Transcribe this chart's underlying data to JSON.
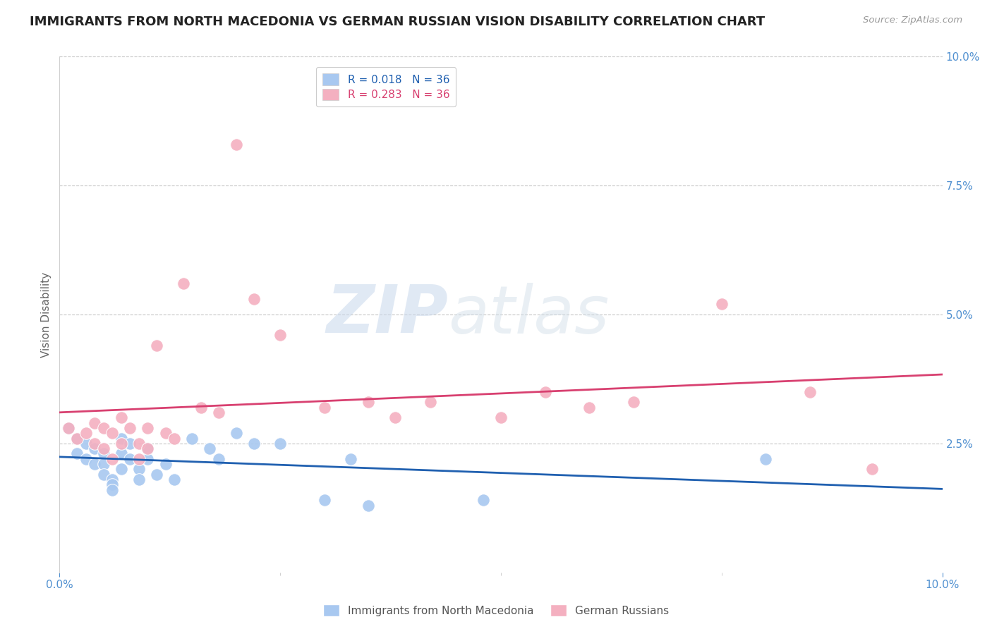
{
  "title": "IMMIGRANTS FROM NORTH MACEDONIA VS GERMAN RUSSIAN VISION DISABILITY CORRELATION CHART",
  "source": "Source: ZipAtlas.com",
  "ylabel": "Vision Disability",
  "series1_name": "Immigrants from North Macedonia",
  "series2_name": "German Russians",
  "series1_color": "#a8c8f0",
  "series2_color": "#f4b0c0",
  "line1_color": "#2060b0",
  "line2_color": "#d84070",
  "r1": 0.018,
  "r2": 0.283,
  "n1": 36,
  "n2": 36,
  "xlim": [
    0.0,
    0.1
  ],
  "ylim": [
    0.0,
    0.1
  ],
  "y_ticks_right": [
    0.025,
    0.05,
    0.075,
    0.1
  ],
  "blue_x": [
    0.001,
    0.002,
    0.002,
    0.003,
    0.003,
    0.004,
    0.004,
    0.005,
    0.005,
    0.005,
    0.006,
    0.006,
    0.006,
    0.007,
    0.007,
    0.007,
    0.008,
    0.008,
    0.009,
    0.009,
    0.01,
    0.01,
    0.011,
    0.012,
    0.013,
    0.015,
    0.017,
    0.018,
    0.02,
    0.022,
    0.025,
    0.03,
    0.033,
    0.035,
    0.048,
    0.08
  ],
  "blue_y": [
    0.028,
    0.026,
    0.023,
    0.025,
    0.022,
    0.024,
    0.021,
    0.023,
    0.021,
    0.019,
    0.018,
    0.017,
    0.016,
    0.026,
    0.023,
    0.02,
    0.025,
    0.022,
    0.02,
    0.018,
    0.024,
    0.022,
    0.019,
    0.021,
    0.018,
    0.026,
    0.024,
    0.022,
    0.027,
    0.025,
    0.025,
    0.014,
    0.022,
    0.013,
    0.014,
    0.022
  ],
  "pink_x": [
    0.001,
    0.002,
    0.003,
    0.004,
    0.004,
    0.005,
    0.005,
    0.006,
    0.006,
    0.007,
    0.007,
    0.008,
    0.009,
    0.009,
    0.01,
    0.01,
    0.011,
    0.012,
    0.013,
    0.014,
    0.016,
    0.018,
    0.02,
    0.022,
    0.025,
    0.03,
    0.035,
    0.038,
    0.042,
    0.05,
    0.055,
    0.06,
    0.065,
    0.075,
    0.085,
    0.092
  ],
  "pink_y": [
    0.028,
    0.026,
    0.027,
    0.029,
    0.025,
    0.028,
    0.024,
    0.027,
    0.022,
    0.03,
    0.025,
    0.028,
    0.025,
    0.022,
    0.028,
    0.024,
    0.044,
    0.027,
    0.026,
    0.056,
    0.032,
    0.031,
    0.083,
    0.053,
    0.046,
    0.032,
    0.033,
    0.03,
    0.033,
    0.03,
    0.035,
    0.032,
    0.033,
    0.052,
    0.035,
    0.02
  ],
  "watermark_zip": "ZIP",
  "watermark_atlas": "atlas",
  "title_fontsize": 13,
  "axis_label_fontsize": 11,
  "tick_fontsize": 11,
  "legend_fontsize": 11,
  "source_fontsize": 9.5,
  "background_color": "#ffffff",
  "grid_color": "#c8c8c8",
  "tick_label_color": "#5090d0"
}
